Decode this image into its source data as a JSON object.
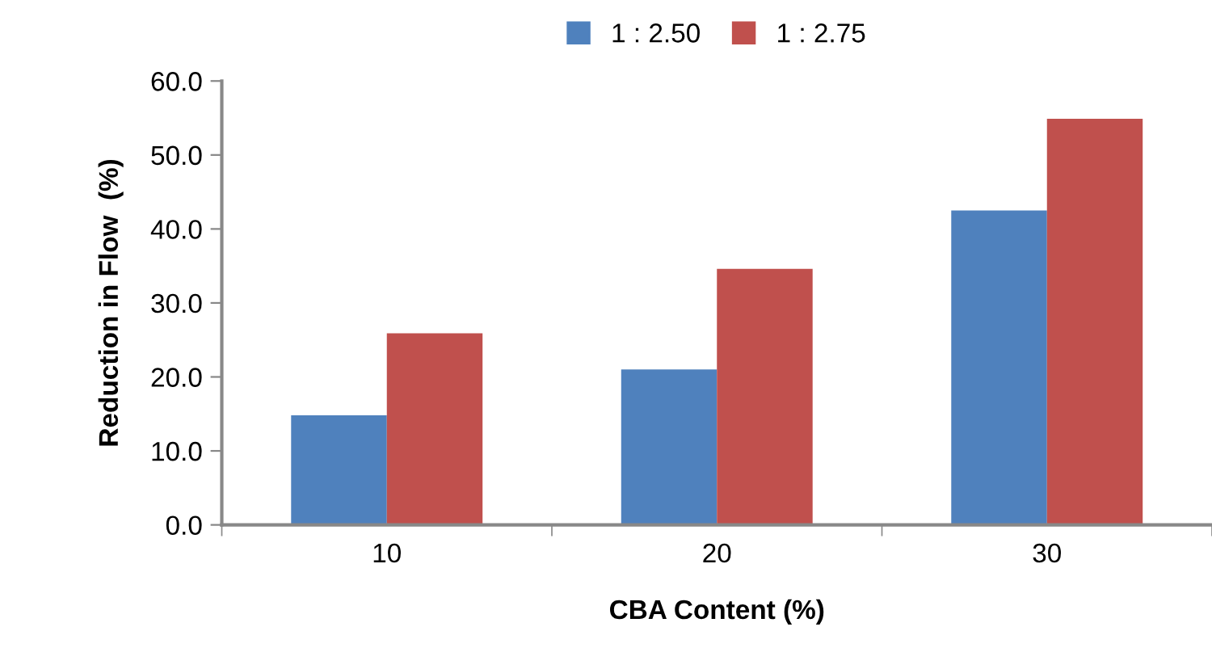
{
  "chart_data": {
    "type": "bar",
    "xlabel": "CBA Content (%)",
    "ylabel": "Reduction in Flow  (%)",
    "categories": [
      "10",
      "20",
      "30"
    ],
    "series": [
      {
        "name": "1 : 2.50",
        "color": "#4f81bd",
        "values": [
          14.8,
          21.0,
          42.5
        ]
      },
      {
        "name": "1 : 2.75",
        "color": "#c0504d",
        "values": [
          25.9,
          34.6,
          54.9
        ]
      }
    ],
    "ylim": [
      0,
      60
    ],
    "yticks": [
      {
        "value": 0,
        "label": "0.0"
      },
      {
        "value": 10,
        "label": "10.0"
      },
      {
        "value": 20,
        "label": "20.0"
      },
      {
        "value": 30,
        "label": "30.0"
      },
      {
        "value": 40,
        "label": "40.0"
      },
      {
        "value": 50,
        "label": "50.0"
      },
      {
        "value": 60,
        "label": "60.0"
      }
    ],
    "grid": false,
    "legend": "top"
  }
}
